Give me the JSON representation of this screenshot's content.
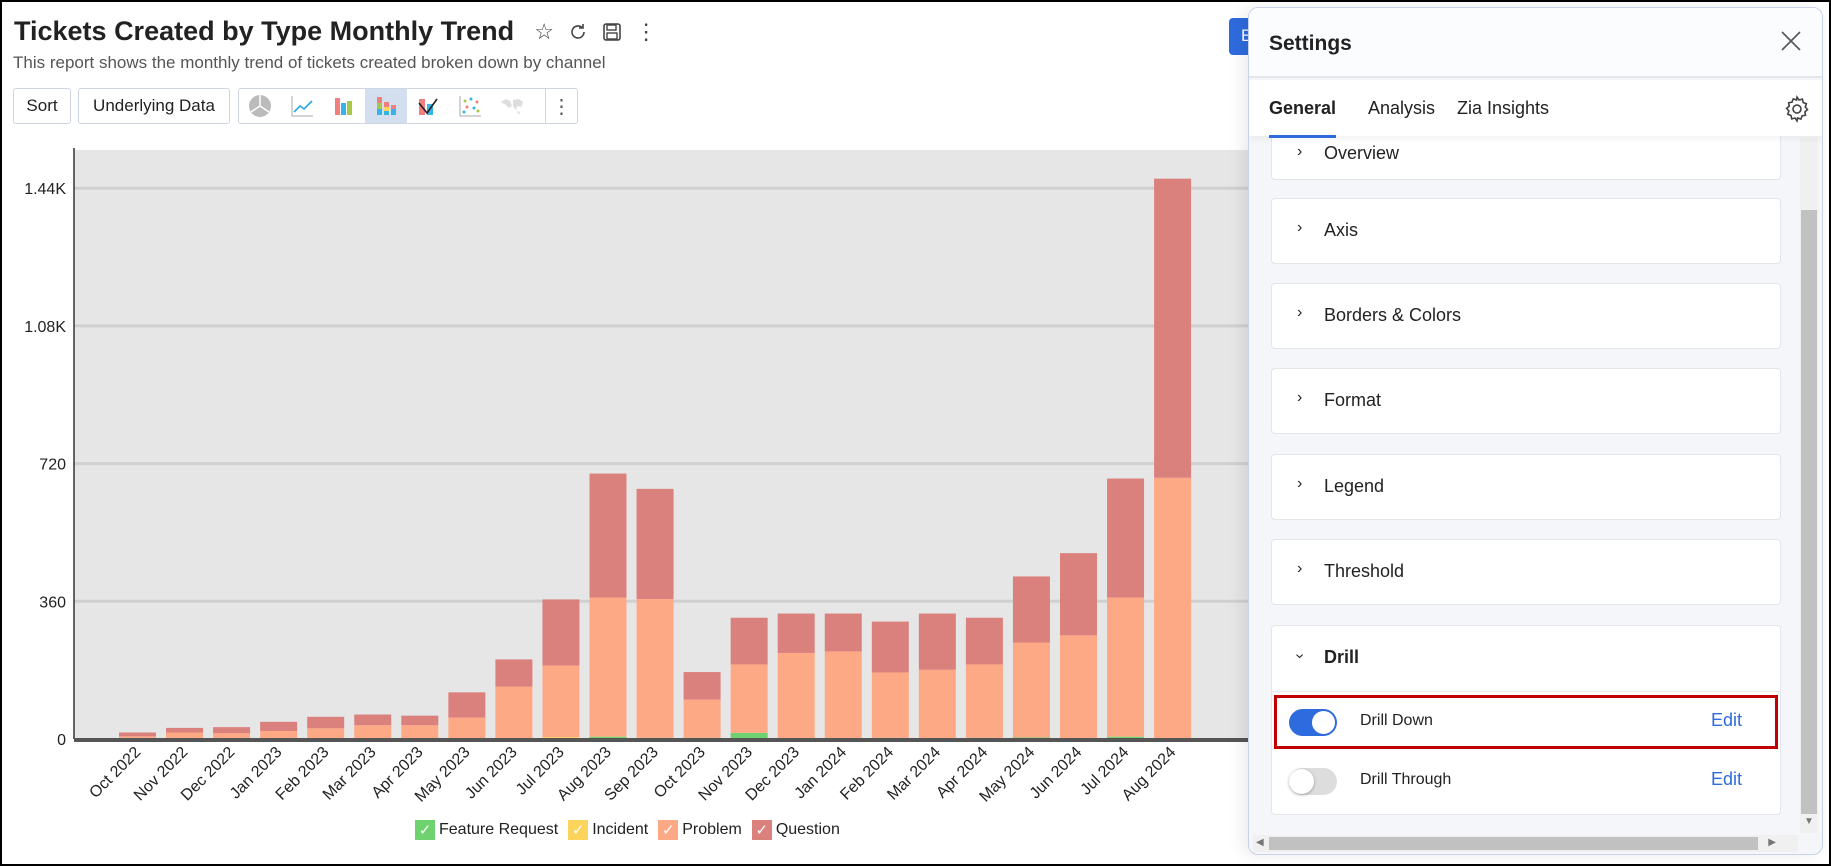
{
  "report": {
    "title": "Tickets Created by Type Monthly Trend",
    "subtitle": "This report shows the monthly trend of tickets created broken down by channel",
    "icons": [
      "star-icon",
      "refresh-icon",
      "save-icon",
      "more-vertical-icon"
    ]
  },
  "toolbar": {
    "sort_label": "Sort",
    "underlying_label": "Underlying Data",
    "chart_types": [
      "pie",
      "line",
      "bar",
      "stacked-bar",
      "combo",
      "scatter",
      "map"
    ],
    "active_chart_type": "stacked-bar",
    "blue_button_label": "E"
  },
  "chart_data": {
    "type": "bar",
    "stacked": true,
    "title": "",
    "xlabel": "",
    "ylabel": "",
    "categories": [
      "Oct 2022",
      "Nov 2022",
      "Dec 2022",
      "Jan 2023",
      "Feb 2023",
      "Mar 2023",
      "Apr 2023",
      "May 2023",
      "Jun 2023",
      "Jul 2023",
      "Aug 2023",
      "Sep 2023",
      "Oct 2023",
      "Nov 2023",
      "Dec 2023",
      "Jan 2024",
      "Feb 2024",
      "Mar 2024",
      "Apr 2024",
      "May 2024",
      "Jun 2024",
      "Jul 2024",
      "Aug 2024"
    ],
    "series": [
      {
        "name": "Feature Request",
        "color": "#6ed36e",
        "values": [
          0,
          0,
          0,
          0,
          0,
          0,
          0,
          0,
          0,
          0,
          6,
          3,
          3,
          16,
          0,
          2,
          3,
          0,
          3,
          4,
          0,
          6,
          0
        ]
      },
      {
        "name": "Incident",
        "color": "#fcd45c",
        "values": [
          0,
          0,
          0,
          0,
          0,
          0,
          0,
          0,
          0,
          5,
          0,
          0,
          0,
          0,
          0,
          0,
          0,
          0,
          0,
          0,
          0,
          0,
          0
        ]
      },
      {
        "name": "Problem",
        "color": "#fea986",
        "values": [
          7,
          17,
          15,
          21,
          28,
          36,
          36,
          56,
          137,
          187,
          364,
          363,
          100,
          179,
          225,
          227,
          171,
          181,
          192,
          248,
          271,
          364,
          683
        ]
      },
      {
        "name": "Question",
        "color": "#da817d",
        "values": [
          10,
          12,
          16,
          24,
          30,
          28,
          25,
          66,
          71,
          173,
          324,
          288,
          72,
          122,
          103,
          99,
          133,
          147,
          122,
          173,
          215,
          311,
          782
        ]
      }
    ],
    "yticks": [
      {
        "v": 0,
        "label": "0"
      },
      {
        "v": 360,
        "label": "360"
      },
      {
        "v": 720,
        "label": "720"
      },
      {
        "v": 1080,
        "label": "1.08K"
      },
      {
        "v": 1440,
        "label": "1.44K"
      }
    ],
    "ylim": [
      0,
      1540
    ],
    "grid": true,
    "legend": "bottom",
    "plot_background": "#e6e6e6"
  },
  "settings": {
    "title": "Settings",
    "tabs": [
      {
        "label": "General",
        "active": true
      },
      {
        "label": "Analysis"
      },
      {
        "label": "Zia Insights"
      }
    ],
    "sections": [
      "Overview",
      "Axis",
      "Borders & Colors",
      "Format",
      "Legend",
      "Threshold"
    ],
    "drill": {
      "label": "Drill",
      "rows": [
        {
          "label": "Drill Down",
          "on": true,
          "edit": "Edit",
          "highlighted": true
        },
        {
          "label": "Drill Through",
          "on": false,
          "edit": "Edit"
        }
      ]
    }
  }
}
